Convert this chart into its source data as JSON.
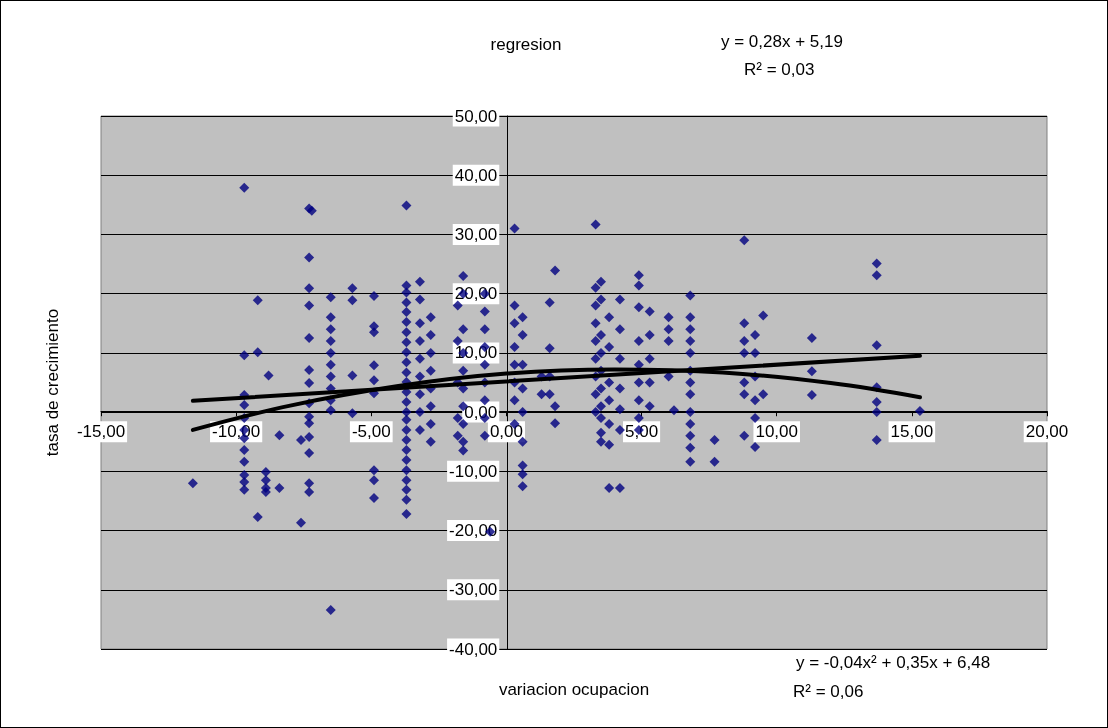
{
  "chart_data": {
    "type": "scatter",
    "title": "regresion",
    "xlabel": "variacion ocupacion",
    "ylabel": "tasa de crecimiento",
    "annotations": [
      "y = 0,28x + 5,19",
      "R² = 0,03",
      "y = -0,04x² + 0,35x + 6,48",
      "R² = 0,06"
    ],
    "xlim": [
      -15,
      20
    ],
    "ylim": [
      -40,
      50
    ],
    "xticks": [
      {
        "value": -15,
        "label": "-15,00"
      },
      {
        "value": -10,
        "label": "-10,00"
      },
      {
        "value": -5,
        "label": "-5,00"
      },
      {
        "value": 0,
        "label": "0,00"
      },
      {
        "value": 5,
        "label": "5,00"
      },
      {
        "value": 10,
        "label": "10,00"
      },
      {
        "value": 15,
        "label": "15,00"
      },
      {
        "value": 20,
        "label": "20,00"
      }
    ],
    "yticks": [
      {
        "value": -40,
        "label": "-40,00"
      },
      {
        "value": -30,
        "label": "-30,00"
      },
      {
        "value": -20,
        "label": "-20,00"
      },
      {
        "value": -10,
        "label": "-10,00"
      },
      {
        "value": 0,
        "label": "0,00"
      },
      {
        "value": 10,
        "label": "10,00"
      },
      {
        "value": 20,
        "label": "20,00"
      },
      {
        "value": 30,
        "label": "30,00"
      },
      {
        "value": 40,
        "label": "40,00"
      },
      {
        "value": 50,
        "label": "50,00"
      }
    ],
    "grid": "y",
    "series": [
      {
        "type": "scatter",
        "color": "#000080",
        "marker": "diamond",
        "x": [
          -11.6,
          -9.7,
          -9.7,
          -9.7,
          -9.7,
          -9.7,
          -9.7,
          -9.7,
          -9.7,
          -9.7,
          -9.7,
          -9.7,
          -9.7,
          -9.2,
          -9.2,
          -9.2,
          -8.8,
          -8.9,
          -8.9,
          -8.9,
          -8.9,
          -8.4,
          -8.4,
          -7.6,
          -7.6,
          -7.3,
          -7.3,
          -7.3,
          -7.3,
          -7.3,
          -7.3,
          -7.3,
          -7.3,
          -7.3,
          -7.3,
          -7.3,
          -7.3,
          -7.3,
          -7.3,
          -7.2,
          -6.5,
          -6.5,
          -6.5,
          -6.5,
          -6.5,
          -6.5,
          -6.5,
          -6.5,
          -6.5,
          -6.5,
          -6.5,
          -5.7,
          -5.7,
          -5.7,
          -5.7,
          -4.9,
          -4.9,
          -4.9,
          -4.9,
          -4.9,
          -4.9,
          -4.9,
          -4.9,
          -4.9,
          -3.7,
          -3.7,
          -3.7,
          -3.7,
          -3.7,
          -3.7,
          -3.7,
          -3.7,
          -3.7,
          -3.7,
          -3.7,
          -3.7,
          -3.7,
          -3.7,
          -3.7,
          -3.7,
          -3.7,
          -3.7,
          -3.7,
          -3.7,
          -3.7,
          -3.7,
          -3.7,
          -3.7,
          -3.7,
          -3.2,
          -3.2,
          -3.2,
          -3.2,
          -3.2,
          -3.2,
          -3.2,
          -3.2,
          -3.2,
          -2.8,
          -2.8,
          -2.8,
          -2.8,
          -2.8,
          -2.8,
          -2.8,
          -2.8,
          -1.6,
          -1.6,
          -1.6,
          -1.6,
          -1.6,
          -1.6,
          -1.6,
          -1.6,
          -1.6,
          -1.6,
          -1.8,
          -1.8,
          -1.8,
          -1.8,
          -1.8,
          -0.8,
          -0.8,
          -0.8,
          -0.8,
          -0.8,
          -0.8,
          -0.8,
          -0.8,
          -0.8,
          -0.6,
          0.3,
          0.3,
          0.3,
          0.3,
          0.3,
          0.3,
          0.3,
          0.3,
          0.6,
          0.6,
          0.6,
          0.6,
          0.6,
          0.6,
          0.6,
          0.6,
          0.6,
          1.3,
          1.3,
          1.6,
          1.6,
          1.6,
          1.6,
          1.8,
          1.8,
          1.8,
          3.3,
          3.3,
          3.3,
          3.3,
          3.3,
          3.3,
          3.3,
          3.3,
          3.3,
          3.5,
          3.5,
          3.5,
          3.5,
          3.5,
          3.5,
          3.5,
          3.5,
          3.5,
          3.5,
          3.8,
          3.8,
          3.8,
          3.8,
          3.8,
          3.8,
          3.8,
          4.2,
          4.2,
          4.2,
          4.2,
          4.2,
          4.2,
          4.2,
          4.9,
          4.9,
          4.9,
          4.9,
          4.9,
          4.9,
          4.9,
          4.9,
          4.9,
          5.3,
          5.3,
          5.3,
          5.3,
          5.3,
          6.0,
          6.0,
          6.0,
          6.0,
          6.2,
          6.8,
          6.8,
          6.8,
          6.8,
          6.8,
          6.8,
          6.8,
          6.8,
          6.8,
          6.8,
          6.8,
          6.8,
          6.8,
          7.7,
          7.7,
          8.8,
          8.8,
          8.8,
          8.8,
          8.8,
          8.8,
          8.8,
          9.2,
          9.2,
          9.2,
          9.2,
          9.2,
          9.2,
          9.5,
          9.5,
          11.3,
          11.3,
          11.3,
          13.7,
          13.7,
          13.7,
          13.7,
          13.7,
          13.7,
          13.7,
          15.3
        ],
        "values": [
          -12.0,
          37.9,
          2.9,
          1.2,
          -1.0,
          -3.0,
          -4.4,
          -6.4,
          -8.4,
          -10.6,
          -11.8,
          -13.1,
          9.6,
          10.1,
          18.9,
          -17.7,
          6.2,
          -10.1,
          -11.5,
          -12.8,
          -13.5,
          -3.9,
          -12.8,
          -18.7,
          -4.7,
          34.4,
          26.1,
          20.9,
          18.0,
          12.5,
          7.1,
          4.9,
          1.5,
          -0.8,
          -1.9,
          -4.2,
          -6.9,
          -12.0,
          -13.5,
          34.0,
          19.4,
          16.0,
          14.0,
          12.0,
          10.0,
          8.0,
          6.0,
          4.0,
          2.0,
          0.3,
          -33.4,
          20.9,
          18.9,
          6.2,
          -0.2,
          19.6,
          14.5,
          13.5,
          7.9,
          5.4,
          3.2,
          -9.8,
          -11.5,
          -14.5,
          34.9,
          21.4,
          20.2,
          18.5,
          16.9,
          15.2,
          13.5,
          11.8,
          10.1,
          8.4,
          6.7,
          5.1,
          3.4,
          1.7,
          0.0,
          -1.3,
          -3.0,
          -4.7,
          -6.4,
          -8.1,
          -9.8,
          -11.5,
          -13.1,
          -14.8,
          -17.2,
          22.0,
          19.0,
          15.0,
          12.0,
          9.0,
          6.0,
          3.0,
          0.0,
          -3.0,
          16.0,
          13.0,
          10.0,
          7.0,
          4.0,
          1.0,
          -2.0,
          -5.0,
          23.0,
          20.0,
          14.0,
          10.0,
          7.0,
          4.0,
          1.0,
          -2.0,
          -5.0,
          -6.5,
          18.0,
          12.0,
          5.0,
          -1.0,
          -4.0,
          20.0,
          17.0,
          14.0,
          11.0,
          8.0,
          5.0,
          2.0,
          -1.0,
          -4.0,
          -20.2,
          31.0,
          18.0,
          15.0,
          11.0,
          8.0,
          5.0,
          2.0,
          -2.0,
          16.0,
          13.0,
          8.0,
          4.0,
          0.0,
          -5.0,
          -9.0,
          -10.5,
          -12.5,
          3.0,
          6.0,
          18.5,
          10.8,
          6.0,
          3.0,
          23.9,
          -1.9,
          1.0,
          31.7,
          21.0,
          18.0,
          15.0,
          12.0,
          9.0,
          6.0,
          3.0,
          0.0,
          22.0,
          19.0,
          13.0,
          10.0,
          7.0,
          4.0,
          1.0,
          -1.0,
          -3.5,
          -5.0,
          -12.8,
          16.0,
          11.0,
          5.0,
          2.0,
          -2.0,
          -5.5,
          -12.8,
          19.0,
          14.0,
          9.0,
          4.0,
          0.5,
          -3.0,
          23.1,
          21.4,
          17.7,
          12.0,
          8.0,
          5.0,
          2.0,
          -1.0,
          -3.0,
          17.0,
          13.0,
          9.0,
          5.0,
          1.0,
          16.0,
          14.0,
          12.0,
          6.0,
          0.3,
          19.7,
          16.0,
          14.0,
          12.0,
          10.0,
          7.0,
          5.0,
          3.0,
          0.0,
          -2.0,
          -4.0,
          -6.0,
          -8.4,
          -4.7,
          -8.4,
          29.0,
          15.0,
          12.0,
          10.0,
          5.0,
          3.0,
          -4.0,
          13.0,
          10.0,
          6.0,
          2.0,
          -1.0,
          -5.9,
          16.3,
          3.0,
          12.5,
          6.9,
          2.9,
          25.1,
          23.1,
          11.3,
          4.2,
          1.7,
          0.0,
          -4.7,
          0.2
        ]
      },
      {
        "type": "line",
        "color": "#000000",
        "marker": "none",
        "line_style": "solid",
        "x": [
          -11.6,
          15.3
        ],
        "values": [
          1.9,
          9.5
        ]
      },
      {
        "type": "line",
        "color": "#000000",
        "marker": "none",
        "line_style": "solid",
        "x": [
          -11.6,
          -8,
          -4,
          0,
          4,
          8,
          12,
          15.3
        ],
        "values": [
          -3.0,
          1.1,
          4.4,
          6.5,
          7.2,
          6.7,
          4.9,
          2.5
        ]
      }
    ]
  }
}
